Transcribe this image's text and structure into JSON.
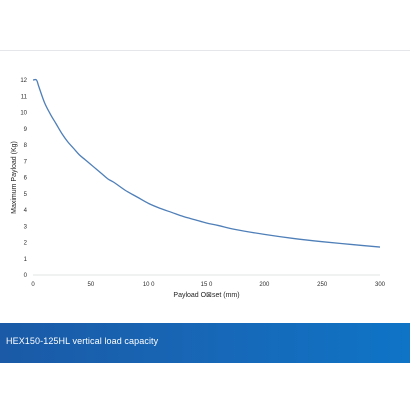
{
  "caption": {
    "text": "HEX150-125HL vertical load capacity"
  },
  "colors": {
    "line": "#4f7fb8",
    "caption_bg": "#1766b5",
    "caption_text": "#ffffff"
  },
  "chart_data": {
    "type": "line",
    "title": "",
    "xlabel": "Payload O⊠set (mm)",
    "ylabel": "Maximum Payload (Kg)",
    "xlim": [
      0,
      300
    ],
    "ylim": [
      0,
      12
    ],
    "x_ticks": [
      0,
      50,
      100,
      150,
      200,
      250,
      300
    ],
    "x_tick_labels": [
      "0",
      "50",
      "10 0",
      "15 0",
      "200",
      "250",
      "300"
    ],
    "y_ticks": [
      0,
      1,
      2,
      3,
      4,
      5,
      6,
      7,
      8,
      9,
      10,
      11,
      12
    ],
    "y_tick_labels": [
      "0",
      "1",
      "2",
      "3",
      "4",
      "5",
      "6",
      "7",
      "8",
      "9",
      "10",
      "11",
      "12"
    ],
    "grid": false,
    "legend": "none",
    "series": [
      {
        "x": [
          0,
          3,
          5,
          10,
          15,
          20,
          25,
          30,
          35,
          40,
          45,
          50,
          55,
          60,
          65,
          70,
          80,
          90,
          100,
          110,
          120,
          130,
          140,
          150,
          160,
          175,
          200,
          225,
          250,
          275,
          300
        ],
        "y": [
          12.0,
          12.0,
          11.6,
          10.6,
          9.9,
          9.3,
          8.7,
          8.2,
          7.8,
          7.4,
          7.1,
          6.8,
          6.5,
          6.2,
          5.9,
          5.7,
          5.2,
          4.8,
          4.4,
          4.1,
          3.85,
          3.6,
          3.4,
          3.2,
          3.05,
          2.8,
          2.5,
          2.25,
          2.05,
          1.88,
          1.72
        ]
      }
    ]
  }
}
